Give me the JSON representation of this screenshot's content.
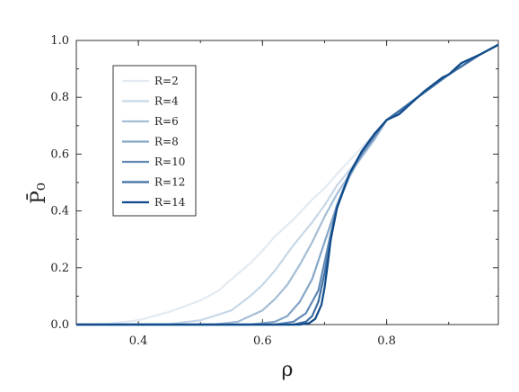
{
  "chart_data": {
    "type": "line",
    "xlabel": "ρ",
    "ylabel": "P̄₀",
    "xlim": [
      0.3,
      0.98
    ],
    "ylim": [
      0.0,
      1.0
    ],
    "xticks": [
      0.4,
      0.6,
      0.8
    ],
    "xtick_labels": [
      "0.4",
      "0.6",
      "0.8"
    ],
    "yticks": [
      0.0,
      0.2,
      0.4,
      0.6,
      0.8,
      1.0
    ],
    "ytick_labels": [
      "0.0",
      "0.2",
      "0.4",
      "0.6",
      "0.8",
      "1.0"
    ],
    "grid": false,
    "legend_position": "top-left",
    "series": [
      {
        "name": "R=2",
        "color": "#e3eaf2",
        "points": [
          [
            0.3,
            0.0
          ],
          [
            0.35,
            0.003
          ],
          [
            0.4,
            0.015
          ],
          [
            0.45,
            0.045
          ],
          [
            0.5,
            0.085
          ],
          [
            0.53,
            0.12
          ],
          [
            0.55,
            0.16
          ],
          [
            0.58,
            0.215
          ],
          [
            0.6,
            0.26
          ],
          [
            0.62,
            0.31
          ],
          [
            0.65,
            0.37
          ],
          [
            0.68,
            0.44
          ],
          [
            0.7,
            0.48
          ],
          [
            0.72,
            0.53
          ],
          [
            0.75,
            0.6
          ],
          [
            0.78,
            0.67
          ],
          [
            0.8,
            0.72
          ],
          [
            0.85,
            0.8
          ],
          [
            0.9,
            0.88
          ],
          [
            0.95,
            0.95
          ],
          [
            0.98,
            0.985
          ]
        ]
      },
      {
        "name": "R=4",
        "color": "#c7d7e7",
        "points": [
          [
            0.3,
            0.0
          ],
          [
            0.45,
            0.002
          ],
          [
            0.5,
            0.015
          ],
          [
            0.55,
            0.05
          ],
          [
            0.58,
            0.1
          ],
          [
            0.6,
            0.14
          ],
          [
            0.62,
            0.19
          ],
          [
            0.65,
            0.28
          ],
          [
            0.68,
            0.36
          ],
          [
            0.7,
            0.42
          ],
          [
            0.72,
            0.49
          ],
          [
            0.75,
            0.57
          ],
          [
            0.78,
            0.65
          ],
          [
            0.8,
            0.72
          ],
          [
            0.85,
            0.8
          ],
          [
            0.9,
            0.88
          ],
          [
            0.95,
            0.95
          ],
          [
            0.98,
            0.985
          ]
        ]
      },
      {
        "name": "R=6",
        "color": "#a4bed6",
        "points": [
          [
            0.3,
            0.0
          ],
          [
            0.52,
            0.0
          ],
          [
            0.56,
            0.01
          ],
          [
            0.6,
            0.05
          ],
          [
            0.62,
            0.09
          ],
          [
            0.64,
            0.14
          ],
          [
            0.66,
            0.21
          ],
          [
            0.68,
            0.29
          ],
          [
            0.7,
            0.38
          ],
          [
            0.72,
            0.46
          ],
          [
            0.75,
            0.56
          ],
          [
            0.78,
            0.65
          ],
          [
            0.8,
            0.72
          ],
          [
            0.85,
            0.8
          ],
          [
            0.9,
            0.88
          ],
          [
            0.95,
            0.95
          ],
          [
            0.98,
            0.985
          ]
        ]
      },
      {
        "name": "R=8",
        "color": "#84a6c6",
        "points": [
          [
            0.3,
            0.0
          ],
          [
            0.58,
            0.0
          ],
          [
            0.62,
            0.01
          ],
          [
            0.64,
            0.03
          ],
          [
            0.66,
            0.08
          ],
          [
            0.68,
            0.16
          ],
          [
            0.7,
            0.29
          ],
          [
            0.72,
            0.42
          ],
          [
            0.74,
            0.52
          ],
          [
            0.76,
            0.6
          ],
          [
            0.78,
            0.66
          ],
          [
            0.8,
            0.72
          ],
          [
            0.85,
            0.8
          ],
          [
            0.9,
            0.88
          ],
          [
            0.95,
            0.95
          ],
          [
            0.98,
            0.985
          ]
        ]
      },
      {
        "name": "R=10",
        "color": "#6189b4",
        "points": [
          [
            0.3,
            0.0
          ],
          [
            0.62,
            0.0
          ],
          [
            0.65,
            0.01
          ],
          [
            0.67,
            0.04
          ],
          [
            0.69,
            0.12
          ],
          [
            0.7,
            0.22
          ],
          [
            0.71,
            0.32
          ],
          [
            0.72,
            0.42
          ],
          [
            0.74,
            0.53
          ],
          [
            0.76,
            0.6
          ],
          [
            0.78,
            0.66
          ],
          [
            0.8,
            0.72
          ],
          [
            0.85,
            0.8
          ],
          [
            0.9,
            0.88
          ],
          [
            0.95,
            0.95
          ],
          [
            0.98,
            0.985
          ]
        ]
      },
      {
        "name": "R=12",
        "color": "#3d6ea3",
        "points": [
          [
            0.3,
            0.0
          ],
          [
            0.65,
            0.0
          ],
          [
            0.67,
            0.01
          ],
          [
            0.68,
            0.03
          ],
          [
            0.69,
            0.08
          ],
          [
            0.7,
            0.18
          ],
          [
            0.71,
            0.3
          ],
          [
            0.72,
            0.41
          ],
          [
            0.74,
            0.53
          ],
          [
            0.76,
            0.61
          ],
          [
            0.78,
            0.67
          ],
          [
            0.8,
            0.72
          ],
          [
            0.82,
            0.75
          ],
          [
            0.85,
            0.8
          ],
          [
            0.9,
            0.88
          ],
          [
            0.95,
            0.95
          ],
          [
            0.98,
            0.985
          ]
        ]
      },
      {
        "name": "R=14",
        "color": "#0f4a8a",
        "points": [
          [
            0.3,
            0.0
          ],
          [
            0.66,
            0.0
          ],
          [
            0.675,
            0.005
          ],
          [
            0.685,
            0.02
          ],
          [
            0.695,
            0.07
          ],
          [
            0.7,
            0.13
          ],
          [
            0.705,
            0.21
          ],
          [
            0.71,
            0.3
          ],
          [
            0.72,
            0.41
          ],
          [
            0.74,
            0.53
          ],
          [
            0.76,
            0.61
          ],
          [
            0.78,
            0.67
          ],
          [
            0.8,
            0.72
          ],
          [
            0.82,
            0.74
          ],
          [
            0.84,
            0.78
          ],
          [
            0.86,
            0.82
          ],
          [
            0.89,
            0.87
          ],
          [
            0.9,
            0.88
          ],
          [
            0.92,
            0.92
          ],
          [
            0.95,
            0.95
          ],
          [
            0.98,
            0.985
          ]
        ]
      }
    ]
  }
}
